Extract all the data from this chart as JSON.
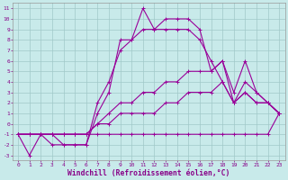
{
  "title": "",
  "xlabel": "Windchill (Refroidissement éolien,°C)",
  "ylabel": "",
  "bg_color": "#c8eaea",
  "grid_color": "#a0c8c8",
  "line_color": "#990099",
  "tick_color": "#880088",
  "xlim": [
    -0.5,
    23.5
  ],
  "ylim": [
    -3.5,
    11.5
  ],
  "xticks": [
    0,
    1,
    2,
    3,
    4,
    5,
    6,
    7,
    8,
    9,
    10,
    11,
    12,
    13,
    14,
    15,
    16,
    17,
    18,
    19,
    20,
    21,
    22,
    23
  ],
  "yticks": [
    -3,
    -2,
    -1,
    0,
    1,
    2,
    3,
    4,
    5,
    6,
    7,
    8,
    9,
    10,
    11
  ],
  "series": [
    {
      "x": [
        0,
        1,
        2,
        3,
        4,
        5,
        6,
        7,
        8,
        9,
        10,
        11,
        12,
        13,
        14,
        15,
        16,
        17,
        18,
        19,
        20,
        21,
        22,
        23
      ],
      "y": [
        -1,
        -3,
        -1,
        -2,
        -2,
        -2,
        -2,
        1,
        3,
        8,
        8,
        11,
        9,
        10,
        10,
        10,
        9,
        5,
        6,
        3,
        6,
        3,
        2,
        1
      ]
    },
    {
      "x": [
        0,
        1,
        2,
        3,
        4,
        5,
        6,
        7,
        8,
        9,
        10,
        11,
        12,
        13,
        14,
        15,
        16,
        17,
        18,
        19,
        20,
        21,
        22,
        23
      ],
      "y": [
        -1,
        -1,
        -1,
        -1,
        -2,
        -2,
        -2,
        2,
        4,
        7,
        8,
        9,
        9,
        9,
        9,
        9,
        8,
        6,
        4,
        2,
        4,
        3,
        2,
        1
      ]
    },
    {
      "x": [
        0,
        1,
        2,
        3,
        4,
        5,
        6,
        7,
        8,
        9,
        10,
        11,
        12,
        13,
        14,
        15,
        16,
        17,
        18,
        19,
        20,
        21,
        22,
        23
      ],
      "y": [
        -1,
        -1,
        -1,
        -1,
        -1,
        -1,
        -1,
        0,
        1,
        2,
        2,
        3,
        3,
        4,
        4,
        5,
        5,
        5,
        6,
        2,
        3,
        2,
        2,
        1
      ]
    },
    {
      "x": [
        0,
        1,
        2,
        3,
        4,
        5,
        6,
        7,
        8,
        9,
        10,
        11,
        12,
        13,
        14,
        15,
        16,
        17,
        18,
        19,
        20,
        21,
        22,
        23
      ],
      "y": [
        -1,
        -1,
        -1,
        -1,
        -1,
        -1,
        -1,
        0,
        0,
        1,
        1,
        1,
        1,
        2,
        2,
        3,
        3,
        3,
        4,
        2,
        3,
        2,
        2,
        1
      ]
    },
    {
      "x": [
        0,
        1,
        2,
        3,
        4,
        5,
        6,
        7,
        8,
        9,
        10,
        11,
        12,
        13,
        14,
        15,
        16,
        17,
        18,
        19,
        20,
        21,
        22,
        23
      ],
      "y": [
        -1,
        -1,
        -1,
        -1,
        -1,
        -1,
        -1,
        -1,
        -1,
        -1,
        -1,
        -1,
        -1,
        -1,
        -1,
        -1,
        -1,
        -1,
        -1,
        -1,
        -1,
        -1,
        -1,
        1
      ]
    }
  ],
  "tick_fontsize": 4.5,
  "xlabel_fontsize": 5.8,
  "linewidth": 0.8,
  "markersize": 2.5
}
